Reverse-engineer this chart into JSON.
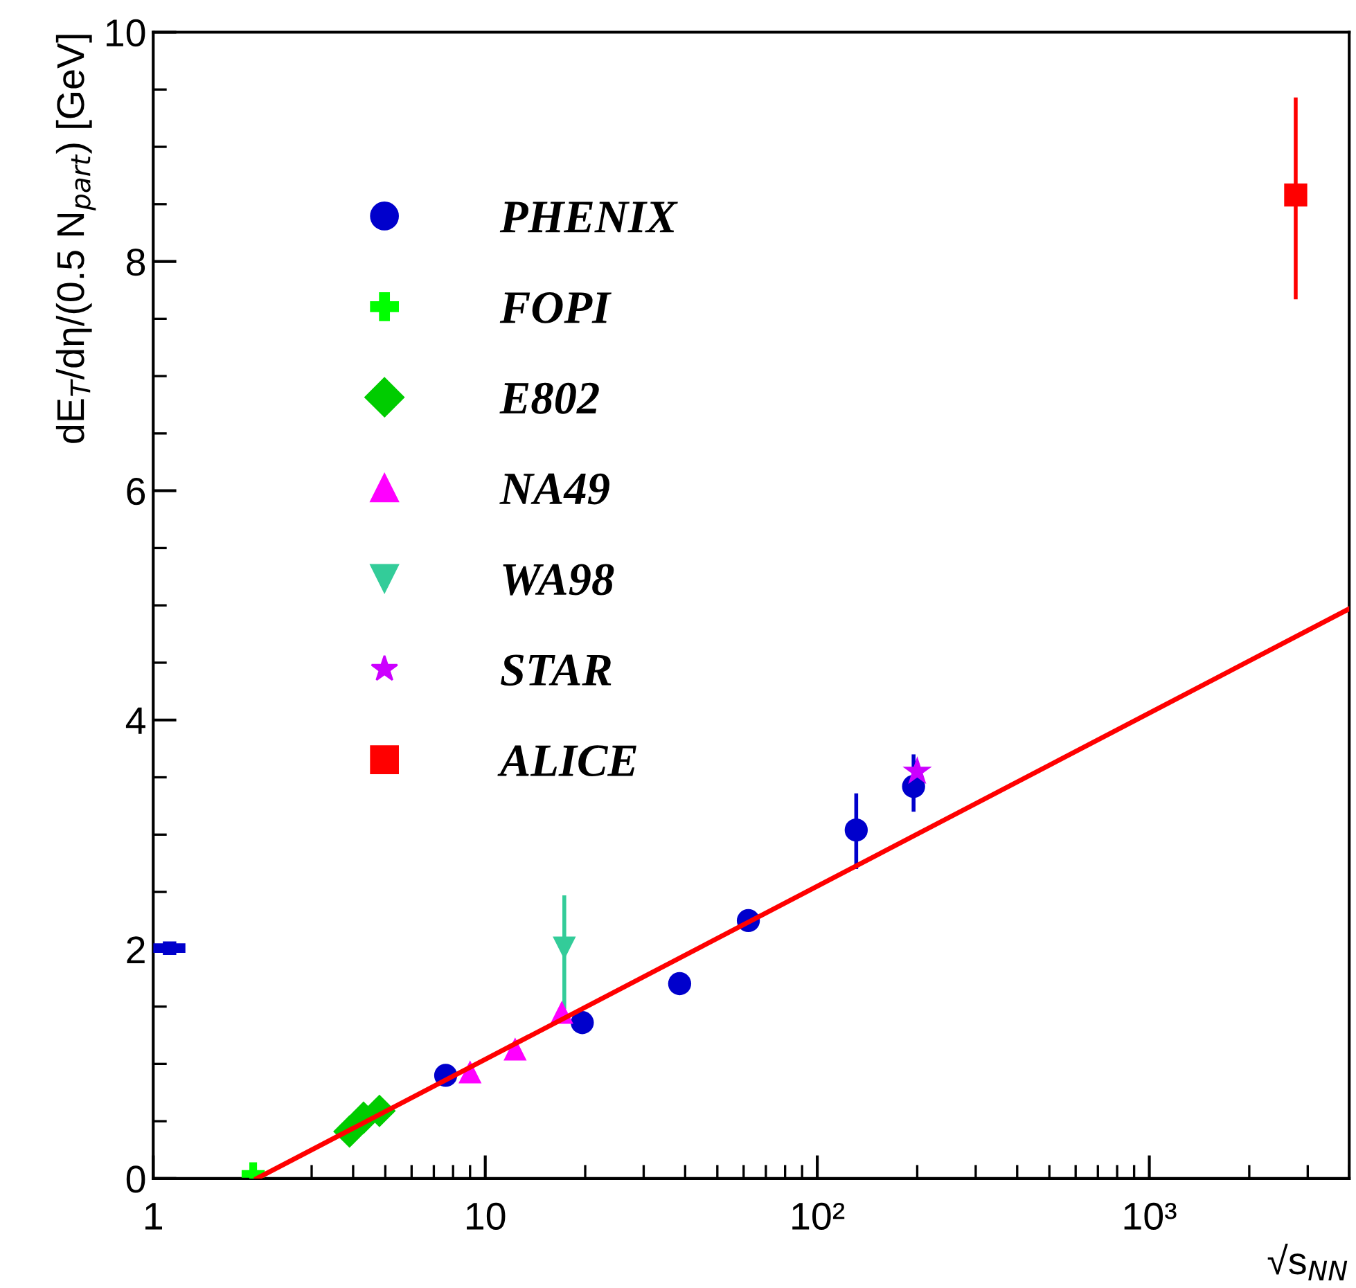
{
  "chart_data": {
    "type": "scatter",
    "xlabel": "√s$_{NN}$",
    "ylabel": "dE$_{T}$/dη/(0.5 N$_{part}$) [GeV]",
    "log": "x",
    "xlim": [
      1,
      4000
    ],
    "xticks": [
      1,
      10,
      {
        "value": 100,
        "label": "10²"
      },
      {
        "value": 1000,
        "label": "10³"
      }
    ],
    "ylim": [
      0,
      10
    ],
    "yticks": [
      0,
      2,
      4,
      6,
      8,
      10
    ],
    "legend": "top left",
    "grid": false,
    "series": [
      {
        "type": "line",
        "color": "#ff0000",
        "x": [
          2.05,
          4000
        ],
        "values": [
          0,
          4.97
        ],
        "marker": "none",
        "line_style": "solid"
      },
      {
        "name": "PHENIX",
        "color": "#0000cc",
        "marker": "circle",
        "x": [
          7.6,
          19.6,
          38.5,
          62,
          131,
          195
        ],
        "values": [
          0.9,
          1.36,
          1.7,
          2.25,
          3.04,
          3.42
        ],
        "errors": [
          null,
          null,
          null,
          null,
          [
            2.7,
            3.36
          ],
          [
            3.2,
            3.7
          ]
        ]
      },
      {
        "color": "#0000cc",
        "marker": "square",
        "x": [
          1.12
        ],
        "values": [
          2.01
        ],
        "xerrors": [
          [
            1.0,
            1.25
          ]
        ]
      },
      {
        "name": "FOPI",
        "color": "#00ff00",
        "marker": "cross",
        "x": [
          2.0
        ],
        "values": [
          0.04
        ]
      },
      {
        "name": "E802",
        "color": "#00cc00",
        "marker": "diamond",
        "x": [
          3.9,
          4.3,
          4.8
        ],
        "values": [
          0.41,
          0.53,
          0.59
        ]
      },
      {
        "name": "NA49",
        "color": "#ff00ff",
        "marker": "triangle",
        "x": [
          9.0,
          12.3,
          17.0
        ],
        "values": [
          0.93,
          1.13,
          1.45
        ]
      },
      {
        "name": "WA98",
        "color": "#33cc99",
        "marker": "triangle_down",
        "x": [
          17.3
        ],
        "values": [
          2.01
        ],
        "errors": [
          [
            1.48,
            2.47
          ]
        ]
      },
      {
        "name": "STAR",
        "color": "#cc00ff",
        "marker": "star",
        "x": [
          200
        ],
        "values": [
          3.55
        ]
      },
      {
        "name": "ALICE",
        "color": "#ff0000",
        "marker": "square",
        "x": [
          2760
        ],
        "values": [
          8.58
        ],
        "errors": [
          [
            7.67,
            9.43
          ]
        ]
      }
    ]
  }
}
